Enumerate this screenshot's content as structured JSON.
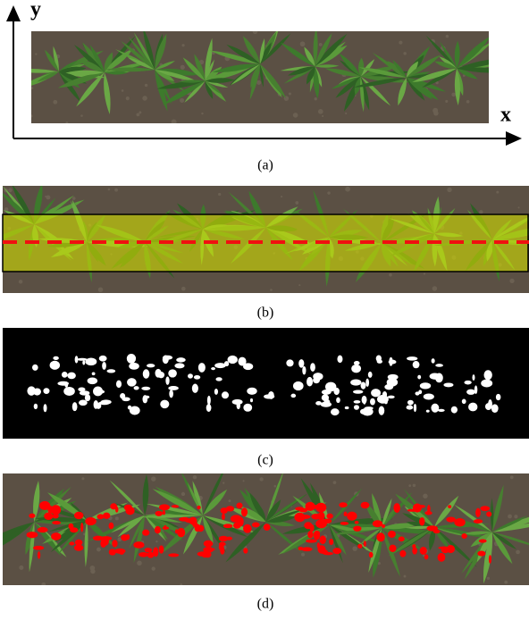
{
  "axes": {
    "y_label": "y",
    "x_label": "x"
  },
  "panels": [
    {
      "caption": "(a)"
    },
    {
      "caption": "(b)"
    },
    {
      "caption": "(c)"
    },
    {
      "caption": "(d)"
    }
  ]
}
